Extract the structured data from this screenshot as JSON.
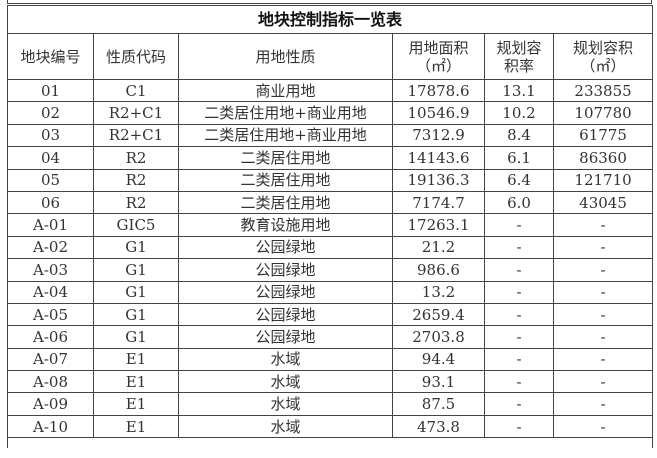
{
  "title": "地块控制指标一览表",
  "headers": [
    "地块编号",
    "性质代码",
    "用地性质",
    "用地面积（㎡）",
    "规划容积率",
    "规划容积（㎡）"
  ],
  "rows": [
    [
      "01",
      "C1",
      "商业用地",
      "17878.6",
      "13.1",
      "233855"
    ],
    [
      "02",
      "R2+C1",
      "二类居住用地+商业用地",
      "10546.9",
      "10.2",
      "107780"
    ],
    [
      "03",
      "R2+C1",
      "二类居住用地+商业用地",
      "7312.9",
      "8.4",
      "61775"
    ],
    [
      "04",
      "R2",
      "二类居住用地",
      "14143.6",
      "6.1",
      "86360"
    ],
    [
      "05",
      "R2",
      "二类居住用地",
      "19136.3",
      "6.4",
      "121710"
    ],
    [
      "06",
      "R2",
      "二类居住用地",
      "7174.7",
      "6.0",
      "43045"
    ],
    [
      "A-01",
      "GIC5",
      "教育设施用地",
      "17263.1",
      "-",
      "-"
    ],
    [
      "A-02",
      "G1",
      "公园绿地",
      "21.2",
      "-",
      "-"
    ],
    [
      "A-03",
      "G1",
      "公园绿地",
      "986.6",
      "-",
      "-"
    ],
    [
      "A-04",
      "G1",
      "公园绿地",
      "13.2",
      "-",
      "-"
    ],
    [
      "A-05",
      "G1",
      "公园绿地",
      "2659.4",
      "-",
      "-"
    ],
    [
      "A-06",
      "G1",
      "公园绿地",
      "2703.8",
      "-",
      "-"
    ],
    [
      "A-07",
      "E1",
      "水域",
      "94.4",
      "-",
      "-"
    ],
    [
      "A-08",
      "E1",
      "水域",
      "93.1",
      "-",
      "-"
    ],
    [
      "A-09",
      "E1",
      "水域",
      "87.5",
      "-",
      "-"
    ],
    [
      "A-10",
      "E1",
      "水域",
      "473.8",
      "-",
      "-"
    ]
  ]
}
